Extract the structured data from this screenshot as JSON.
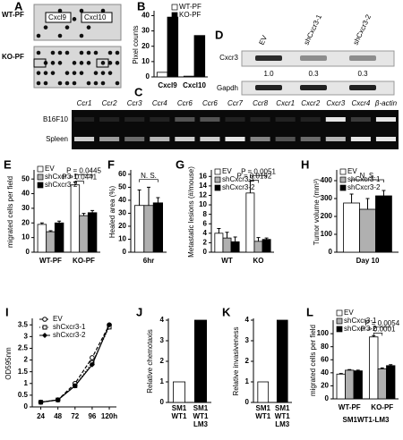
{
  "panel_A": {
    "letter": "A",
    "rows": [
      "WT-PF",
      "KO-PF"
    ],
    "boxes": [
      "Cxcl9",
      "Cxcl10"
    ]
  },
  "panel_C": {
    "letter": "C",
    "columns": [
      "Ccr1",
      "Ccr2",
      "Ccr3",
      "Ccr4",
      "Ccr6",
      "Ccr6",
      "Ccr7",
      "Ccr8",
      "Cxcr1",
      "Cxcr2",
      "Cxcr3",
      "Cxcr4",
      "β-actin"
    ],
    "rows": [
      "B16F10",
      "Spleen"
    ]
  },
  "panel_D": {
    "letter": "D",
    "lanes": [
      "EV",
      "shCxcr3-1",
      "shCxcr3-2"
    ],
    "proteins": [
      "Cxcr3",
      "Gapdh"
    ],
    "ratios": [
      "1.0",
      "0.3",
      "0.3"
    ]
  },
  "chart_data": [
    {
      "type": "bar",
      "panel": "B",
      "ylabel": "Pixel counts",
      "categories": [
        "Cxcl9",
        "Cxcl10"
      ],
      "series": [
        {
          "name": "WT-PF",
          "color": "#ffffff",
          "values": [
            3,
            0.5
          ]
        },
        {
          "name": "KO-PF",
          "color": "#000000",
          "values": [
            39,
            27
          ]
        }
      ],
      "ylim": [
        0,
        42
      ],
      "yticks": [
        0,
        10,
        20,
        30,
        40
      ]
    },
    {
      "type": "bar",
      "panel": "E",
      "ylabel": "migrated cells per field",
      "categories": [
        "WT-PF",
        "KO-PF"
      ],
      "series": [
        {
          "name": "EV",
          "color": "#ffffff",
          "values": [
            19,
            46
          ],
          "errors": [
            1,
            2
          ]
        },
        {
          "name": "shCxcr3-1",
          "color": "#b0b0b0",
          "values": [
            14,
            25
          ],
          "errors": [
            0.7,
            1.5
          ]
        },
        {
          "name": "shCxcr3-2",
          "color": "#000000",
          "values": [
            20,
            27
          ],
          "errors": [
            1.2,
            1.5
          ]
        }
      ],
      "ylim": [
        0,
        55
      ],
      "yticks": [
        0,
        10,
        20,
        30,
        40,
        50
      ],
      "annotations": [
        "P = 0.0445",
        "P = 0.0441"
      ]
    },
    {
      "type": "bar",
      "panel": "F",
      "ylabel": "Healed area (%)",
      "categories": [
        "6hr"
      ],
      "series": [
        {
          "name": "EV",
          "color": "#ffffff",
          "values": [
            36
          ],
          "errors": [
            12
          ]
        },
        {
          "name": "shCxcr3-1",
          "color": "#b0b0b0",
          "values": [
            36
          ],
          "errors": [
            14
          ]
        },
        {
          "name": "shCxcr3-2",
          "color": "#000000",
          "values": [
            38
          ],
          "errors": [
            4
          ]
        }
      ],
      "ylim": [
        0,
        62
      ],
      "yticks": [
        0,
        10,
        20,
        30,
        40,
        50,
        60
      ],
      "annotations": [
        "N. S."
      ]
    },
    {
      "type": "bar",
      "panel": "G",
      "ylabel": "Metastatic lesions (#/mouse)",
      "categories": [
        "WT",
        "KO"
      ],
      "series": [
        {
          "name": "EV",
          "color": "#ffffff",
          "values": [
            4,
            12.5
          ],
          "errors": [
            1,
            2.5
          ]
        },
        {
          "name": "shCxcr3-1",
          "color": "#b0b0b0",
          "values": [
            3,
            2.3
          ],
          "errors": [
            1.2,
            0.8
          ]
        },
        {
          "name": "shCxcr3-2",
          "color": "#000000",
          "values": [
            2.2,
            2.7
          ],
          "errors": [
            1,
            0.3
          ]
        }
      ],
      "ylim": [
        0,
        17
      ],
      "yticks": [
        0,
        2,
        4,
        6,
        8,
        10,
        12,
        14,
        16
      ],
      "annotations": [
        "P = 0.0051",
        "P = 0.0192"
      ]
    },
    {
      "type": "bar",
      "panel": "H",
      "ylabel": "Tumor volume (mm³)",
      "categories": [
        "Day 10"
      ],
      "series": [
        {
          "name": "EV",
          "color": "#ffffff",
          "values": [
            275
          ],
          "errors": [
            50
          ]
        },
        {
          "name": "shCxcr3-1",
          "color": "#b0b0b0",
          "values": [
            240
          ],
          "errors": [
            60
          ]
        },
        {
          "name": "shCxcr3-2",
          "color": "#000000",
          "values": [
            315
          ],
          "errors": [
            30
          ]
        }
      ],
      "ylim": [
        0,
        450
      ],
      "yticks": [
        0,
        100,
        200,
        300,
        400
      ],
      "annotations": [
        "N. S."
      ]
    },
    {
      "type": "line",
      "panel": "I",
      "ylabel": "OD595nm",
      "x": [
        24,
        48,
        72,
        96,
        120
      ],
      "series": [
        {
          "name": "EV",
          "color": "#000000",
          "dash": "4,2",
          "marker": "circle",
          "values": [
            0.2,
            0.3,
            1.0,
            2.1,
            3.5
          ]
        },
        {
          "name": "shCxcr3-1",
          "color": "#000000",
          "dash": "1,2",
          "marker": "square",
          "values": [
            0.2,
            0.3,
            0.9,
            1.9,
            3.4
          ]
        },
        {
          "name": "shCxcr3-2",
          "color": "#000000",
          "dash": "none",
          "marker": "diamond",
          "values": [
            0.2,
            0.3,
            0.9,
            1.8,
            3.5
          ]
        }
      ],
      "xlim": [
        12,
        130
      ],
      "xticks": [
        24,
        48,
        72,
        96,
        {
          "value": 120,
          "label": "120h"
        }
      ],
      "ylim": [
        0,
        3.7
      ],
      "yticks": [
        0,
        0.5,
        1,
        1.5,
        2,
        2.5,
        3,
        3.5
      ]
    },
    {
      "type": "bar",
      "panel": "J",
      "ylabel": "Relative chemotaxis",
      "categories": [
        "SM1 WT1",
        "SM1 WT1 LM3"
      ],
      "values": [
        1,
        4
      ],
      "colors": [
        "#ffffff",
        "#000000"
      ],
      "ylim": [
        0,
        4
      ],
      "yticks": [
        0,
        1,
        2,
        3,
        4
      ]
    },
    {
      "type": "bar",
      "panel": "K",
      "ylabel": "Relative invasiveness",
      "categories": [
        "SM1 WT1",
        "SM1 WT1 LM3"
      ],
      "values": [
        1,
        4
      ],
      "colors": [
        "#ffffff",
        "#000000"
      ],
      "ylim": [
        0,
        4
      ],
      "yticks": [
        0,
        1,
        2,
        3,
        4
      ]
    },
    {
      "type": "bar",
      "panel": "L",
      "ylabel": "migrated cells per field",
      "xlabel": "SM1WT1-LM3",
      "categories": [
        "WT-PF",
        "KO-PF"
      ],
      "series": [
        {
          "name": "EV",
          "color": "#ffffff",
          "values": [
            38,
            95
          ],
          "errors": [
            1,
            2
          ]
        },
        {
          "name": "shCxcr3-1",
          "color": "#b0b0b0",
          "values": [
            44,
            46
          ],
          "errors": [
            1,
            1.5
          ]
        },
        {
          "name": "shCxcr3-2",
          "color": "#000000",
          "values": [
            43,
            51
          ],
          "errors": [
            1,
            1.5
          ]
        }
      ],
      "ylim": [
        0,
        118
      ],
      "yticks": [
        0,
        20,
        40,
        60,
        80,
        100
      ],
      "annotations": [
        "P = 0.0054",
        "P = 0.0001"
      ]
    }
  ]
}
